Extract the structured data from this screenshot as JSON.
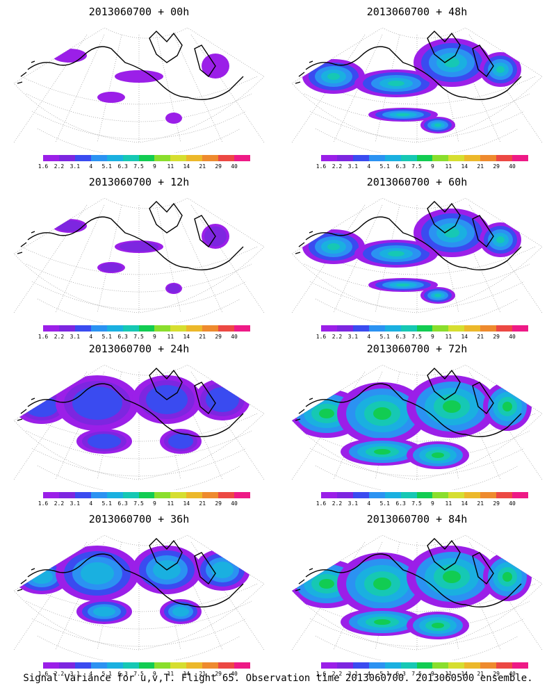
{
  "panels": [
    {
      "title": "2013060700 + 00h",
      "intensity": 0
    },
    {
      "title": "2013060700 + 48h",
      "intensity": 4
    },
    {
      "title": "2013060700 + 12h",
      "intensity": 1
    },
    {
      "title": "2013060700 + 60h",
      "intensity": 5
    },
    {
      "title": "2013060700 + 24h",
      "intensity": 2
    },
    {
      "title": "2013060700 + 72h",
      "intensity": 6
    },
    {
      "title": "2013060700 + 36h",
      "intensity": 3
    },
    {
      "title": "2013060700 + 84h",
      "intensity": 7
    }
  ],
  "colorbar": {
    "labels": [
      "1.6",
      "2.2",
      "3.1",
      "4",
      "5.1",
      "6.3",
      "7.5",
      "9",
      "11",
      "14",
      "21",
      "29",
      "40"
    ],
    "colors": [
      "#9b1fe8",
      "#7d26e0",
      "#3a4bf0",
      "#2b92f2",
      "#1ab0e0",
      "#16c8b4",
      "#12cc52",
      "#8ade2c",
      "#d6de30",
      "#ecb82a",
      "#ee8a2e",
      "#ec4844",
      "#ee1a86"
    ]
  },
  "caption": "Signal Variance for u,v,T. Flight 65. Observation time 2013060700. 2013060500 ensemble."
}
